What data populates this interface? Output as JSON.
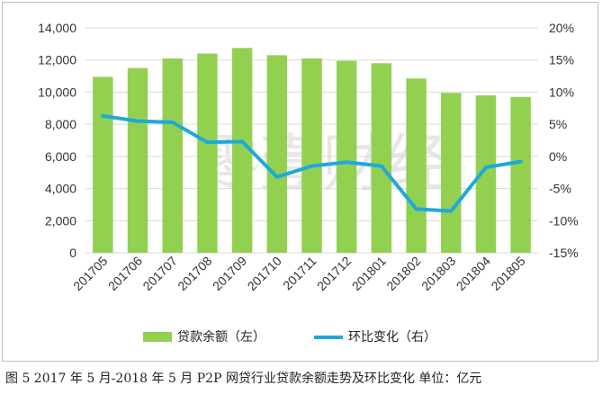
{
  "chart_data": {
    "type": "bar",
    "categories": [
      "201705",
      "201706",
      "201707",
      "201708",
      "201709",
      "201710",
      "201711",
      "201712",
      "201801",
      "201802",
      "201803",
      "201804",
      "201805"
    ],
    "series": [
      {
        "name": "贷款余额（左）",
        "type": "bar",
        "axis": "left",
        "color": "#92d050",
        "values": [
          10950,
          11500,
          12100,
          12400,
          12750,
          12300,
          12100,
          11950,
          11800,
          10850,
          9950,
          9800,
          9700
        ]
      },
      {
        "name": "环比变化（右）",
        "type": "line",
        "axis": "right",
        "color": "#1ea8dc",
        "values": [
          6.3,
          5.5,
          5.3,
          2.2,
          2.3,
          -3.2,
          -1.5,
          -0.9,
          -1.5,
          -8.2,
          -8.5,
          -1.7,
          -0.8
        ]
      }
    ],
    "y_left": {
      "ylim": [
        0,
        14000
      ],
      "ticks": [
        0,
        2000,
        4000,
        6000,
        8000,
        10000,
        12000,
        14000
      ],
      "tick_labels": [
        "0",
        "2,000",
        "4,000",
        "6,000",
        "8,000",
        "10,000",
        "12,000",
        "14,000"
      ]
    },
    "y_right": {
      "ylim": [
        -15,
        20
      ],
      "ticks": [
        -15,
        -10,
        -5,
        0,
        5,
        10,
        15,
        20
      ],
      "tick_labels": [
        "-15%",
        "-10%",
        "-5%",
        "0%",
        "5%",
        "10%",
        "15%",
        "20%"
      ]
    },
    "grid": true,
    "legend": "bottom",
    "watermark": "零壹财经"
  },
  "caption": "图 5  2017 年 5 月-2018 年 5 月 P2P 网贷行业贷款余额走势及环比变化 单位：亿元"
}
